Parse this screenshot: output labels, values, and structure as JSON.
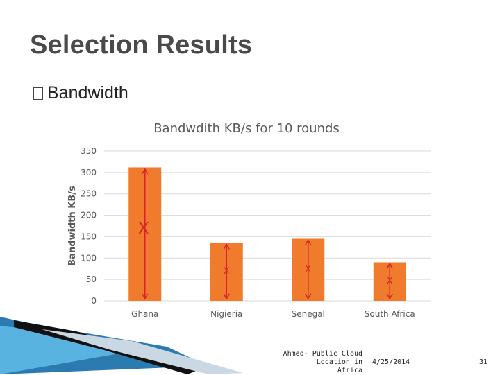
{
  "slide": {
    "title": "Selection Results",
    "bullet": "Bandwidth",
    "footer_line1": "Ahmed- Public Cloud Location in",
    "footer_line2": "Africa",
    "date": "4/25/2014",
    "page_number": "31"
  },
  "chart_data": {
    "type": "bar",
    "title": "Bandwdith KB/s for 10 rounds",
    "xlabel": "",
    "ylabel": "Bandwidth KB/s",
    "categories": [
      "Ghana",
      "Nigieria",
      "Senegal",
      "South Africa"
    ],
    "values": [
      312,
      135,
      145,
      90
    ],
    "ylim": [
      0,
      350
    ],
    "yticks": [
      0,
      50,
      100,
      150,
      200,
      250,
      300,
      350
    ],
    "grid": true,
    "legend": "none",
    "bar_color": "#F07B2C",
    "annotation_color": "#D9232A",
    "annotations": [
      {
        "category": "Ghana",
        "marker": "X",
        "range": [
          5,
          308
        ]
      },
      {
        "category": "Nigieria",
        "marker": "X",
        "range": [
          5,
          132
        ]
      },
      {
        "category": "Senegal",
        "marker": "X",
        "range": [
          5,
          142
        ]
      },
      {
        "category": "South Africa",
        "marker": "X",
        "range": [
          5,
          87
        ]
      }
    ]
  }
}
